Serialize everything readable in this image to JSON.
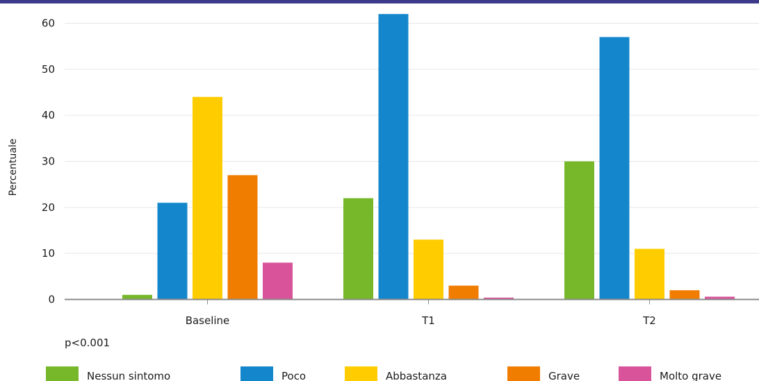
{
  "chart_data": {
    "type": "bar",
    "categories": [
      "Baseline",
      "T1",
      "T2"
    ],
    "series": [
      {
        "name": "Nessun sintomo",
        "color": "#77b82a",
        "values": [
          1,
          22,
          30
        ]
      },
      {
        "name": "Poco",
        "color": "#1487cc",
        "values": [
          21,
          62,
          57
        ]
      },
      {
        "name": "Abbastanza",
        "color": "#ffcc00",
        "values": [
          44,
          13,
          11
        ]
      },
      {
        "name": "Grave",
        "color": "#f07d00",
        "values": [
          27,
          3,
          2
        ]
      },
      {
        "name": "Molto grave",
        "color": "#d9539b",
        "values": [
          8,
          0.4,
          0.6
        ]
      }
    ],
    "ylabel": "Percentuale",
    "xlabel": "",
    "ylim": [
      0,
      60
    ],
    "yticks": [
      0,
      10,
      20,
      30,
      40,
      50,
      60
    ],
    "grid": true,
    "legend": "bottom",
    "annotation": "p<0.001"
  },
  "colors": {
    "top_band": "#3d3a8c",
    "grid": "#e6e6e6",
    "axis": "#8a8a8a"
  }
}
